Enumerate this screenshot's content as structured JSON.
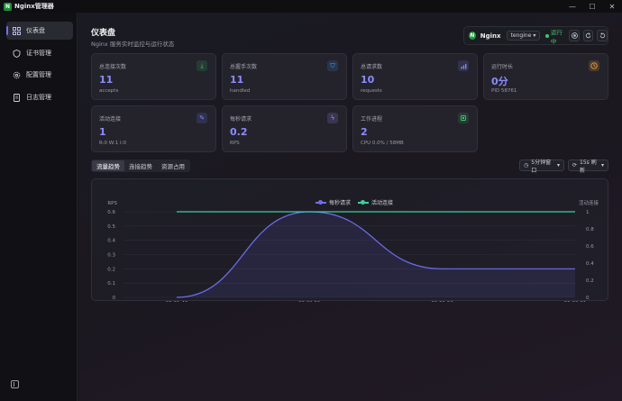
{
  "app": {
    "title": "Nginx管理器",
    "logo_letter": "N"
  },
  "window_controls": [
    "—",
    "☐",
    "✕"
  ],
  "sidebar": {
    "items": [
      {
        "label": "仪表盘",
        "icon": "grid-icon",
        "active": true
      },
      {
        "label": "证书管理",
        "icon": "shield-icon",
        "active": false
      },
      {
        "label": "配置管理",
        "icon": "gear-icon",
        "active": false
      },
      {
        "label": "日志管理",
        "icon": "document-icon",
        "active": false
      }
    ]
  },
  "header": {
    "title": "仪表盘",
    "subtitle": "Nginx 服务实时监控与运行状态"
  },
  "status": {
    "name": "Nginx",
    "variant": "tengine",
    "running_label": "运行中"
  },
  "cards": [
    {
      "label": "总连接次数",
      "value": "11",
      "sub": "accepts",
      "icon": "download-icon",
      "color": "#3ec76a"
    },
    {
      "label": "总握手次数",
      "value": "11",
      "sub": "handled",
      "icon": "handshake-icon",
      "color": "#4aa3ff"
    },
    {
      "label": "总请求数",
      "value": "10",
      "sub": "requests",
      "icon": "bar-chart-icon",
      "color": "#8c8cff"
    },
    {
      "label": "运行时长",
      "value": "0分",
      "sub": "PID 58761",
      "icon": "clock-icon",
      "color": "#f0a03a"
    },
    {
      "label": "活动连接",
      "value": "1",
      "sub": "R:0 W:1 I:0",
      "icon": "pencil-icon",
      "color": "#6e6ef0"
    },
    {
      "label": "每秒请求",
      "value": "0.2",
      "sub": "RPS",
      "icon": "bolt-icon",
      "color": "#a78bfa"
    },
    {
      "label": "工作进程",
      "value": "2",
      "sub": "CPU 0.0% / 58MB",
      "icon": "cpu-icon",
      "color": "#3ec76a"
    }
  ],
  "tabs": [
    {
      "label": "流量趋势",
      "active": true
    },
    {
      "label": "连接趋势",
      "active": false
    },
    {
      "label": "资源占用",
      "active": false
    }
  ],
  "time_range": "5分钟窗口",
  "refresh": "15s 刷新",
  "chart_data": {
    "type": "line",
    "x": [
      "00:01:46",
      "00:01:51",
      "00:01:56",
      "00:02:01"
    ],
    "series": [
      {
        "name": "每秒请求",
        "axis": "left",
        "color": "#6e6ef0",
        "points": [
          [
            0,
            0
          ],
          [
            1,
            0.6
          ],
          [
            2,
            0.2
          ],
          [
            3,
            0.2
          ]
        ]
      },
      {
        "name": "活动连接",
        "axis": "right",
        "color": "#3ecf9a",
        "points": [
          [
            0,
            1
          ],
          [
            3,
            1
          ]
        ]
      }
    ],
    "ylabel_left": "RPS",
    "ylabel_right": "活动连接",
    "yticks_left": [
      "0",
      "0.1",
      "0.2",
      "0.3",
      "0.4",
      "0.5",
      "0.6"
    ],
    "yticks_right": [
      "0",
      "0.2",
      "0.4",
      "0.6",
      "0.8",
      "1"
    ],
    "ylim_left": [
      0,
      0.6
    ],
    "ylim_right": [
      0,
      1
    ],
    "grid": true,
    "legend_position": "top-center"
  }
}
